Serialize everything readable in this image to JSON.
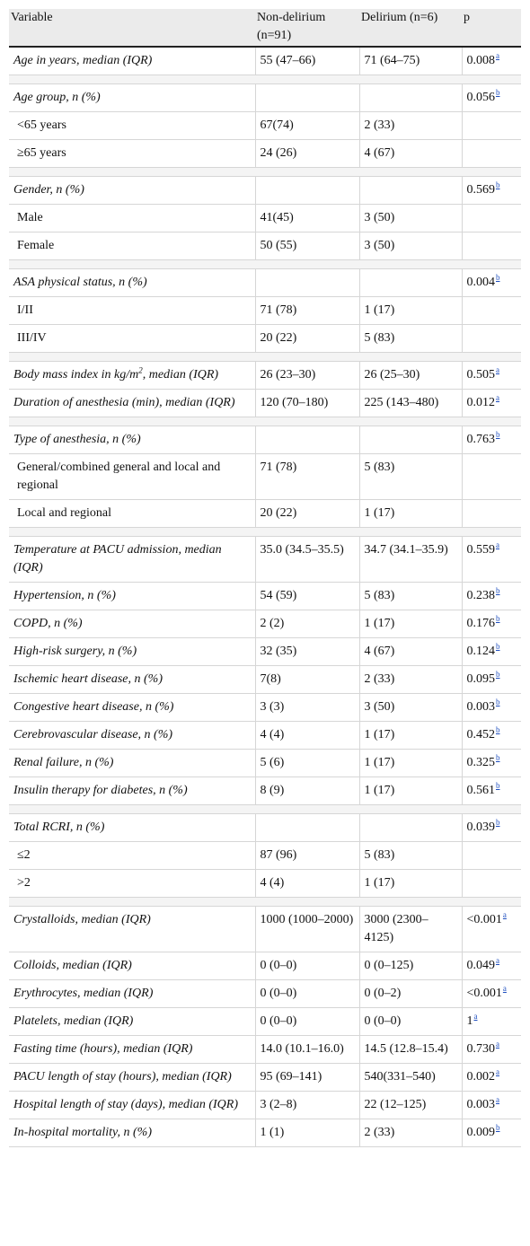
{
  "header": {
    "variable": "Variable",
    "non_delirium": "Non-delirium (n=91)",
    "delirium": "Delirium (n=6)",
    "p": "p"
  },
  "rows": [
    {
      "type": "main",
      "var": "Age in years, median (IQR)",
      "nd": "55 (47–66)",
      "d": "71 (64–75)",
      "p": "0.008",
      "sup": "a"
    },
    {
      "type": "spacer"
    },
    {
      "type": "main",
      "var": "Age group, n (%)",
      "nd": "",
      "d": "",
      "p": "0.056",
      "sup": "b"
    },
    {
      "type": "sub",
      "var": "<65 years",
      "nd": "67(74)",
      "d": "2 (33)",
      "p": "",
      "sup": ""
    },
    {
      "type": "sub",
      "var": "≥65 years",
      "nd": "24 (26)",
      "d": "4 (67)",
      "p": "",
      "sup": ""
    },
    {
      "type": "spacer"
    },
    {
      "type": "main",
      "var": "Gender, n (%)",
      "nd": "",
      "d": "",
      "p": "0.569",
      "sup": "b"
    },
    {
      "type": "sub",
      "var": "Male",
      "nd": "41(45)",
      "d": "3 (50)",
      "p": "",
      "sup": ""
    },
    {
      "type": "sub",
      "var": "Female",
      "nd": "50 (55)",
      "d": "3 (50)",
      "p": "",
      "sup": ""
    },
    {
      "type": "spacer"
    },
    {
      "type": "main",
      "var": "ASA physical status, n (%)",
      "nd": "",
      "d": "",
      "p": "0.004",
      "sup": "b"
    },
    {
      "type": "sub",
      "var": "I/II",
      "nd": "71 (78)",
      "d": "1 (17)",
      "p": "",
      "sup": ""
    },
    {
      "type": "sub",
      "var": "III/IV",
      "nd": "20 (22)",
      "d": "5 (83)",
      "p": "",
      "sup": ""
    },
    {
      "type": "spacer"
    },
    {
      "type": "main",
      "var": "Body mass index in kg/m",
      "var_sup": "2",
      "var_rest": ", median (IQR)",
      "nd": "26 (23–30)",
      "d": "26 (25–30)",
      "p": "0.505",
      "sup": "a"
    },
    {
      "type": "main",
      "var": "Duration of anesthesia (min), median (IQR)",
      "nd": "120 (70–180)",
      "d": "225 (143–480)",
      "p": "0.012",
      "sup": "a"
    },
    {
      "type": "spacer"
    },
    {
      "type": "main",
      "var": "Type of anesthesia, n (%)",
      "nd": "",
      "d": "",
      "p": "0.763",
      "sup": "b"
    },
    {
      "type": "sub",
      "var": "General/combined general and local and regional",
      "nd": "71 (78)",
      "d": "5 (83)",
      "p": "",
      "sup": ""
    },
    {
      "type": "sub",
      "var": "Local and regional",
      "nd": "20 (22)",
      "d": "1 (17)",
      "p": "",
      "sup": ""
    },
    {
      "type": "spacer"
    },
    {
      "type": "main",
      "var": "Temperature at PACU admission, median (IQR)",
      "nd": "35.0 (34.5–35.5)",
      "d": "34.7 (34.1–35.9)",
      "p": "0.559",
      "sup": "a"
    },
    {
      "type": "main",
      "var": "Hypertension, n (%)",
      "nd": "54 (59)",
      "d": "5 (83)",
      "p": "0.238",
      "sup": "b"
    },
    {
      "type": "main",
      "var": "COPD, n (%)",
      "nd": "2 (2)",
      "d": "1 (17)",
      "p": "0.176",
      "sup": "b"
    },
    {
      "type": "main",
      "var": "High-risk surgery, n (%)",
      "nd": "32 (35)",
      "d": "4 (67)",
      "p": "0.124",
      "sup": "b"
    },
    {
      "type": "main",
      "var": "Ischemic heart disease, n (%)",
      "nd": "7(8)",
      "d": "2 (33)",
      "p": "0.095",
      "sup": "b"
    },
    {
      "type": "main",
      "var": "Congestive heart disease, n (%)",
      "nd": "3 (3)",
      "d": "3 (50)",
      "p": "0.003",
      "sup": "b"
    },
    {
      "type": "main",
      "var": "Cerebrovascular disease, n (%)",
      "nd": "4 (4)",
      "d": "1 (17)",
      "p": "0.452",
      "sup": "b"
    },
    {
      "type": "main",
      "var": "Renal failure, n (%)",
      "nd": "5 (6)",
      "d": "1 (17)",
      "p": "0.325",
      "sup": "b"
    },
    {
      "type": "main",
      "var": "Insulin therapy for diabetes, n (%)",
      "nd": "8 (9)",
      "d": "1 (17)",
      "p": "0.561",
      "sup": "b"
    },
    {
      "type": "spacer"
    },
    {
      "type": "main",
      "var": "Total RCRI, n (%)",
      "nd": "",
      "d": "",
      "p": "0.039",
      "sup": "b"
    },
    {
      "type": "sub",
      "var": "≤2",
      "nd": "87 (96)",
      "d": "5 (83)",
      "p": "",
      "sup": ""
    },
    {
      "type": "sub",
      "var": ">2",
      "nd": "4 (4)",
      "d": "1 (17)",
      "p": "",
      "sup": ""
    },
    {
      "type": "spacer"
    },
    {
      "type": "main",
      "var": "Crystalloids, median (IQR)",
      "nd": "1000 (1000–2000)",
      "d": "3000 (2300–4125)",
      "p": "<0.001",
      "sup": "a"
    },
    {
      "type": "main",
      "var": "Colloids, median (IQR)",
      "nd": "0 (0–0)",
      "d": "0 (0–125)",
      "p": "0.049",
      "sup": "a"
    },
    {
      "type": "main",
      "var": "Erythrocytes, median (IQR)",
      "nd": "0 (0–0)",
      "d": "0 (0–2)",
      "p": "<0.001",
      "sup": "a"
    },
    {
      "type": "main",
      "var": "Platelets, median (IQR)",
      "nd": "0 (0–0)",
      "d": "0 (0–0)",
      "p": "1",
      "sup": "a"
    },
    {
      "type": "main",
      "var": "Fasting time (hours), median (IQR)",
      "nd": "14.0 (10.1–16.0)",
      "d": "14.5 (12.8–15.4)",
      "p": "0.730",
      "sup": "a"
    },
    {
      "type": "main",
      "var": "PACU length of stay (hours), median (IQR)",
      "nd": "95 (69–141)",
      "d": "540(331–540)",
      "p": "0.002",
      "sup": "a"
    },
    {
      "type": "main",
      "var": "Hospital length of stay (days), median (IQR)",
      "nd": "3 (2–8)",
      "d": "22 (12–125)",
      "p": "0.003",
      "sup": "a"
    },
    {
      "type": "main",
      "var": "In-hospital mortality, n (%)",
      "nd": "1 (1)",
      "d": "2 (33)",
      "p": "0.009",
      "sup": "b"
    }
  ]
}
